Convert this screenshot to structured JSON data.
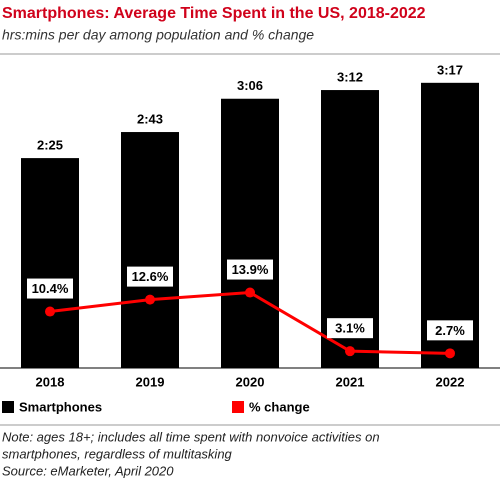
{
  "chart_data": {
    "type": "bar",
    "title": "Smartphones: Average Time Spent in the US, 2018-2022",
    "subtitle": "hrs:mins per day among population and % change",
    "categories": [
      "2018",
      "2019",
      "2020",
      "2021",
      "2022"
    ],
    "series": [
      {
        "name": "Smartphones",
        "type": "bar",
        "color": "#000000",
        "values": [
          145,
          163,
          186,
          192,
          197
        ],
        "value_labels": [
          "2:25",
          "2:43",
          "3:06",
          "3:12",
          "3:17"
        ]
      },
      {
        "name": "% change",
        "type": "line",
        "axis": "y2",
        "color": "#ff0000",
        "values": [
          10.4,
          12.6,
          13.9,
          3.1,
          2.7
        ],
        "value_labels": [
          "10.4%",
          "12.6%",
          "13.9%",
          "3.1%",
          "2.7%"
        ]
      }
    ],
    "ylim": [
      0,
      210
    ],
    "y2lim": [
      0,
      56
    ],
    "legend": "bottom-left",
    "notes": [
      "Note: ages 18+; includes all time spent with nonvoice activities on",
      "smartphones, regardless of multitasking"
    ],
    "source": "Source: eMarketer, April 2020"
  }
}
